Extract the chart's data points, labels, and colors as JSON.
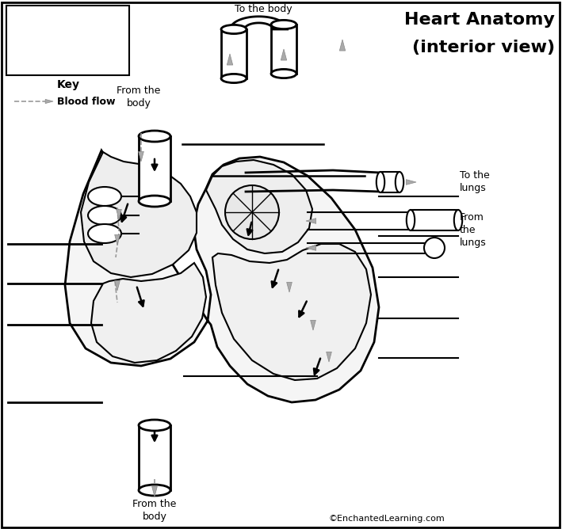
{
  "title_line1": "Heart Anatomy",
  "title_line2": "(interior view)",
  "key_title": "Key",
  "key_label": "Blood flow",
  "label_to_body_top": "To the body",
  "label_from_body_left": "From the\nbody",
  "label_to_lungs": "To the\nlungs",
  "label_from_lungs_1": "From",
  "label_from_lungs_2": "the",
  "label_from_lungs_3": "lungs",
  "label_from_body_bottom": "From the\nbody",
  "copyright": "©EnchantedLearning.com",
  "bg_color": "#ffffff",
  "line_color": "#000000",
  "gray_color": "#888888"
}
